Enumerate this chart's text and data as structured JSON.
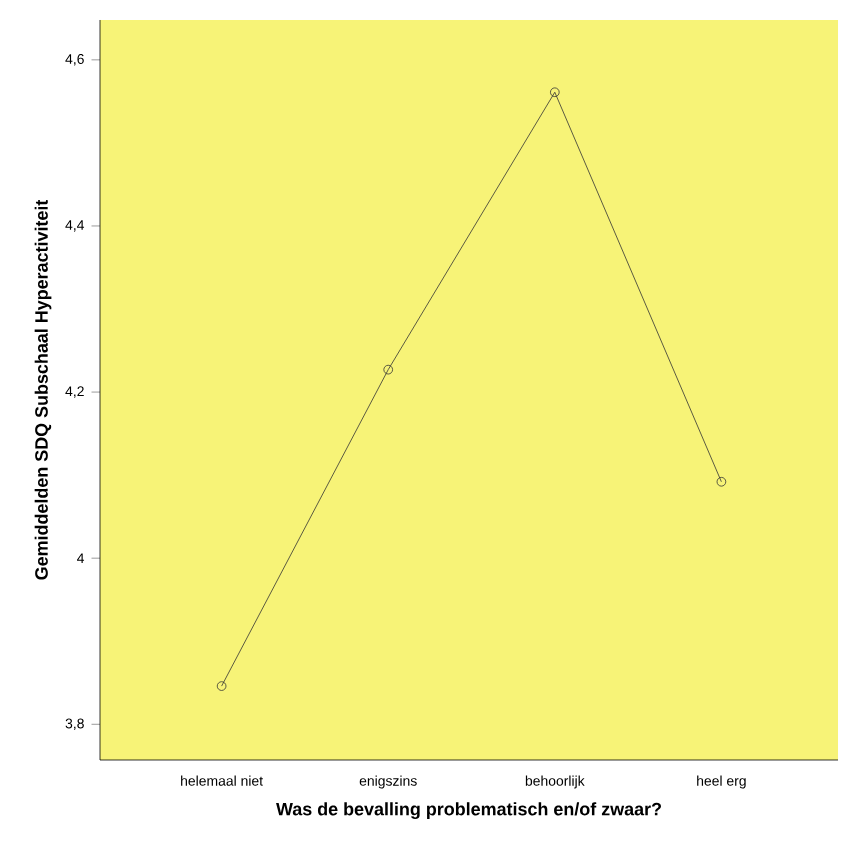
{
  "chart_data": {
    "type": "line",
    "xlabel": "Was de bevalling problematisch en/of zwaar?",
    "ylabel": "Gemiddelden SDQ Subschaal Hyperactiviteit",
    "categories": [
      "helemaal niet",
      "enigszins",
      "behoorlijk",
      "heel erg"
    ],
    "series": [
      {
        "color": "#333333",
        "values": [
          3.846,
          4.227,
          4.561,
          4.092
        ]
      }
    ],
    "ylim": [
      3.757,
      4.648
    ],
    "yticks": [
      {
        "value": 3.8,
        "label": "3,8"
      },
      {
        "value": 4,
        "label": "4"
      },
      {
        "value": 4.2,
        "label": "4,2"
      },
      {
        "value": 4.4,
        "label": "4,4"
      },
      {
        "value": 4.6,
        "label": "4,6"
      }
    ],
    "grid": false,
    "marker": "circle",
    "line_style": "solid"
  }
}
